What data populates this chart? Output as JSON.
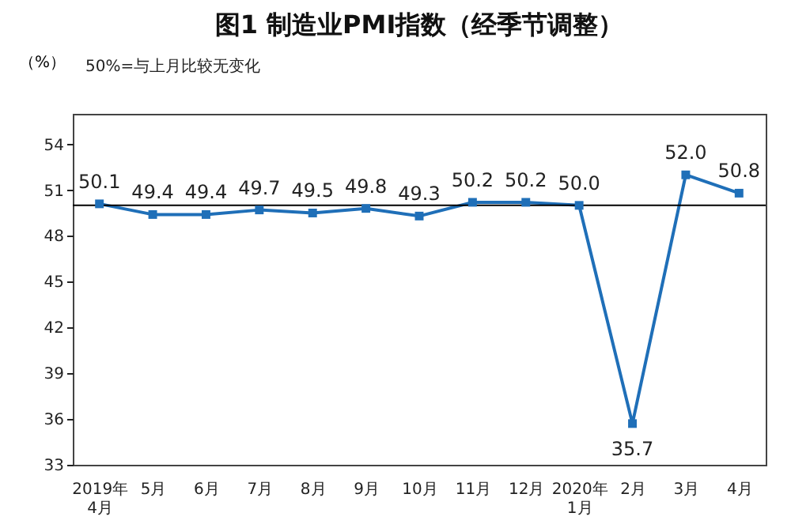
{
  "chart_data": {
    "type": "line",
    "title": "图1  制造业PMI指数（经季节调整）",
    "ylabel": "（%）",
    "annotations": [
      "50%=与上月比较无变化"
    ],
    "categories": [
      "2019年\n4月",
      "5月",
      "6月",
      "7月",
      "8月",
      "9月",
      "10月",
      "11月",
      "12月",
      "2020年\n1月",
      "2月",
      "3月",
      "4月"
    ],
    "series": [
      {
        "color": "#1f6fb8",
        "values": [
          50.1,
          49.4,
          49.4,
          49.7,
          49.5,
          49.8,
          49.3,
          50.2,
          50.2,
          50.0,
          35.7,
          52.0,
          50.8
        ]
      }
    ],
    "ylim": [
      33,
      56
    ],
    "yticks": [
      33,
      36,
      39,
      42,
      45,
      48,
      51,
      54
    ],
    "ref_lines": [
      {
        "axis": "y",
        "value": 50,
        "color": "#000000"
      }
    ],
    "value_labels": [
      "50.1",
      "49.4",
      "49.4",
      "49.7",
      "49.5",
      "49.8",
      "49.3",
      "50.2",
      "50.2",
      "50.0",
      "35.7",
      "52.0",
      "50.8"
    ],
    "marker": "square",
    "grid": false
  }
}
